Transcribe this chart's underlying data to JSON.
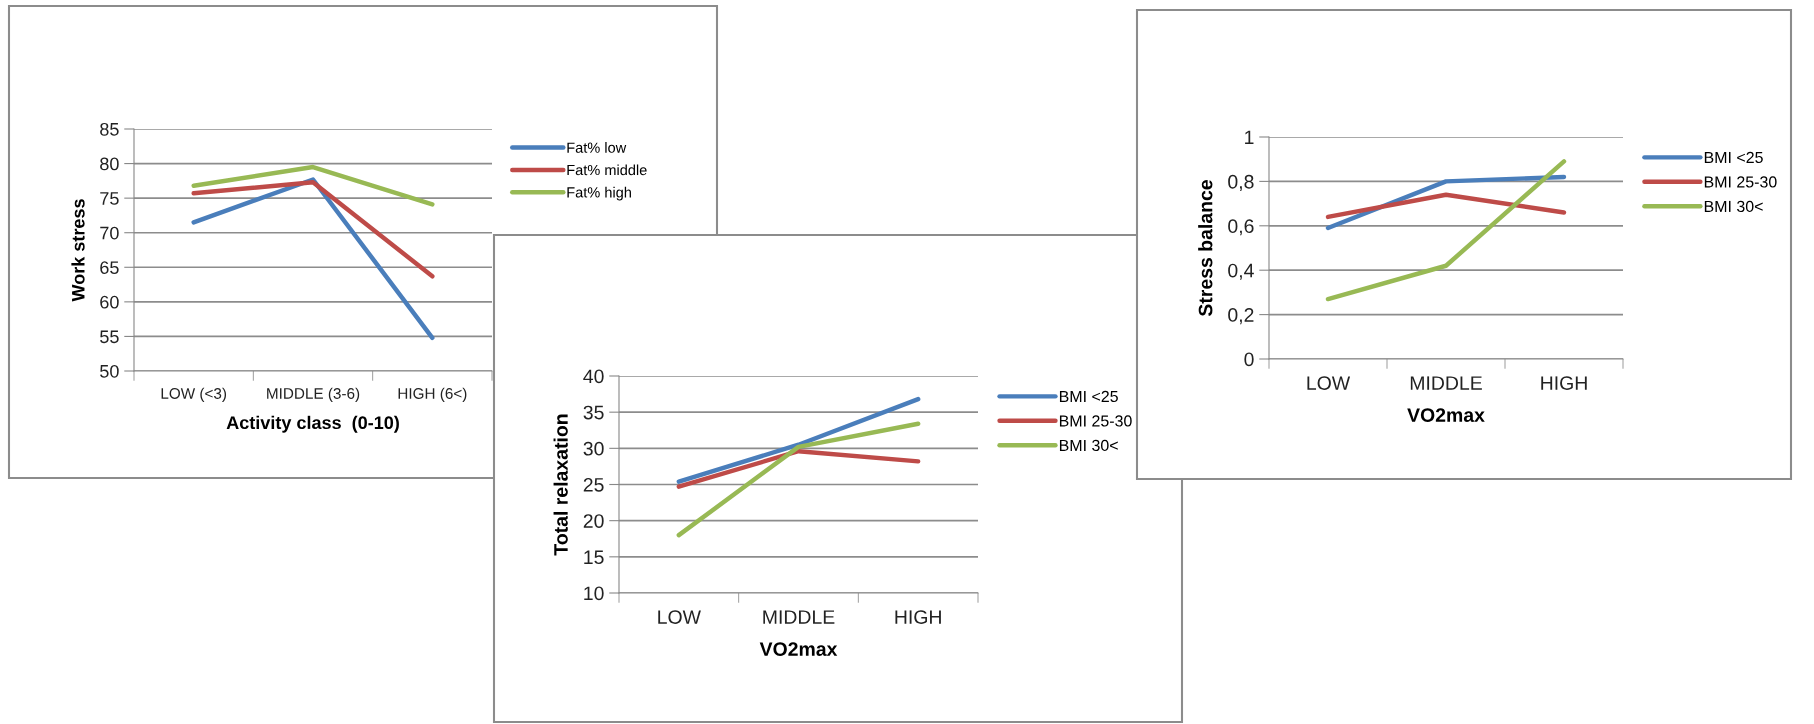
{
  "chart_data": [
    {
      "type": "line",
      "categories": [
        "LOW (<3)",
        "MIDDLE (3-6)",
        "HIGH (6<)"
      ],
      "xlabel": "Activity class  (0-10)",
      "ylabel": "Work stress",
      "ylim": [
        50,
        85
      ],
      "yticks": [
        50,
        55,
        60,
        65,
        70,
        75,
        80,
        85
      ],
      "grid": "y",
      "legend": "right",
      "series": [
        {
          "name": "Fat% low",
          "color": "#4a7ebb",
          "values": [
            71.5,
            77.7,
            54.8
          ]
        },
        {
          "name": "Fat% middle",
          "color": "#be4b48",
          "values": [
            75.7,
            77.3,
            63.7
          ]
        },
        {
          "name": "Fat% high",
          "color": "#98b954",
          "values": [
            76.8,
            79.5,
            74.1
          ]
        }
      ]
    },
    {
      "type": "line",
      "categories": [
        "LOW",
        "MIDDLE",
        "HIGH"
      ],
      "xlabel": "VO2max",
      "ylabel": "Total relaxation",
      "ylim": [
        10,
        40
      ],
      "yticks": [
        10,
        15,
        20,
        25,
        30,
        35,
        40
      ],
      "grid": "y",
      "legend": "right",
      "series": [
        {
          "name": "BMI <25",
          "color": "#4a7ebb",
          "values": [
            25.4,
            30.5,
            36.8
          ]
        },
        {
          "name": "BMI 25-30",
          "color": "#be4b48",
          "values": [
            24.7,
            29.6,
            28.2
          ]
        },
        {
          "name": "BMI 30<",
          "color": "#98b954",
          "values": [
            18.0,
            30.2,
            33.4
          ]
        }
      ]
    },
    {
      "type": "line",
      "categories": [
        "LOW",
        "MIDDLE",
        "HIGH"
      ],
      "xlabel": "VO2max",
      "ylabel": "Stress balance",
      "ylim": [
        0,
        1
      ],
      "yticks": [
        0,
        {
          "value": 0.2,
          "label": "0,2"
        },
        {
          "value": 0.4,
          "label": "0,4"
        },
        {
          "value": 0.6,
          "label": "0,6"
        },
        {
          "value": 0.8,
          "label": "0,8"
        },
        1
      ],
      "grid": "y",
      "legend": "right",
      "series": [
        {
          "name": "BMI <25",
          "color": "#4a7ebb",
          "values": [
            0.59,
            0.8,
            0.82
          ]
        },
        {
          "name": "BMI 25-30",
          "color": "#be4b48",
          "values": [
            0.64,
            0.74,
            0.66
          ]
        },
        {
          "name": "BMI 30<",
          "color": "#98b954",
          "values": [
            0.27,
            0.42,
            0.89
          ]
        }
      ]
    }
  ]
}
